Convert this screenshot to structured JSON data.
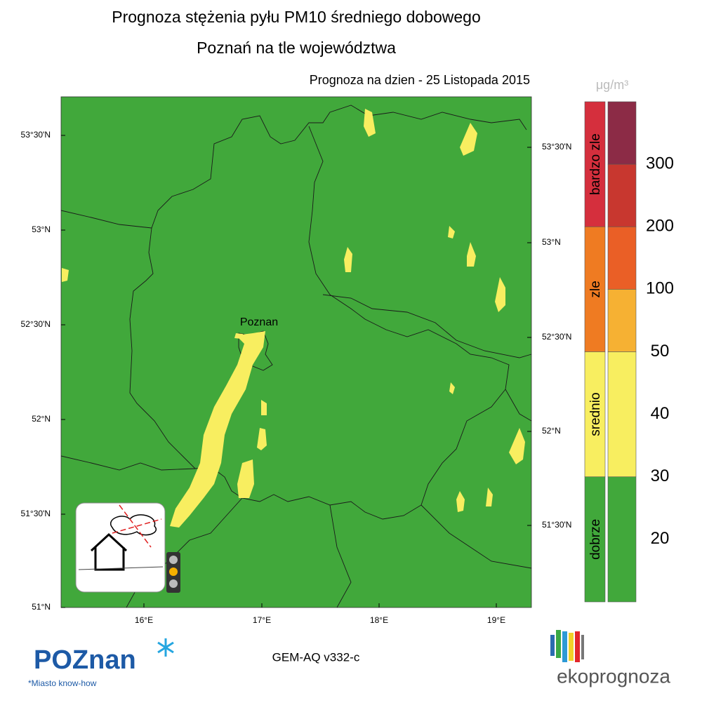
{
  "header": {
    "title": "Prognoza stężenia pyłu PM10 średniego dobowego",
    "subtitle": "Poznań na tle województwa",
    "date": "Prognoza na dzien -  25 Listopada 2015"
  },
  "map": {
    "city": "Poznan",
    "lat_labels_left": [
      "53°30'N",
      "53°N",
      "52°30'N",
      "52°N",
      "51°30'N",
      "51°N"
    ],
    "lat_labels_right": [
      "53°30'N",
      "53°N",
      "52°30'N",
      "52°N",
      "51°30'N"
    ],
    "lon_labels": [
      "16°E",
      "17°E",
      "18°E",
      "19°E"
    ]
  },
  "legend": {
    "unit": "μg/m³",
    "categories": [
      {
        "label": "bardzo zle",
        "color": "#d52f3d"
      },
      {
        "label": "zle",
        "color": "#ef7b22"
      },
      {
        "label": "srednio",
        "color": "#f8ee60"
      },
      {
        "label": "dobrze",
        "color": "#41a83b"
      }
    ],
    "bin_colors": [
      "#8c2b46",
      "#c8372f",
      "#ea5f26",
      "#f6b133",
      "#f8ee60",
      "#41a83b"
    ],
    "scale": [
      300,
      200,
      100,
      50,
      40,
      30,
      20
    ]
  },
  "footer": {
    "model": "GEM-AQ v332-c",
    "city_logo": "POZnan",
    "city_slogan": "*Miasto know-how",
    "brand": "ekoprognoza"
  }
}
